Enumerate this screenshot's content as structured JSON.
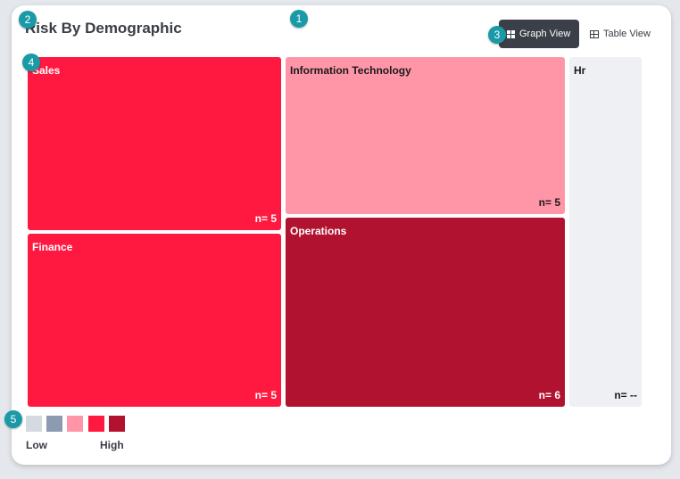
{
  "widget": {
    "title": "Risk By Demographic",
    "views": {
      "graph_label": "Graph View",
      "table_label": "Table View",
      "active": "graph"
    }
  },
  "treemap": {
    "tiles": [
      {
        "label": "Sales",
        "count": "n= 5",
        "color": "#ff1940",
        "text_color": "#ffffff"
      },
      {
        "label": "Finance",
        "count": "n= 5",
        "color": "#ff1940",
        "text_color": "#ffffff"
      },
      {
        "label": "Information Technology",
        "count": "n= 5",
        "color": "#ff96a8",
        "text_color": "#1a1a1a"
      },
      {
        "label": "Operations",
        "count": "n= 6",
        "color": "#b0122f",
        "text_color": "#ffffff"
      },
      {
        "label": "Hr",
        "count": "n= --",
        "color": "#eef0f4",
        "text_color": "#1a1a1a"
      }
    ]
  },
  "legend": {
    "low_label": "Low",
    "high_label": "High",
    "colors": [
      "#d4d9e2",
      "#8d9bb0",
      "#ff96a8",
      "#ff1940",
      "#b0122f"
    ]
  },
  "markers": [
    "1",
    "2",
    "3",
    "4",
    "5"
  ]
}
